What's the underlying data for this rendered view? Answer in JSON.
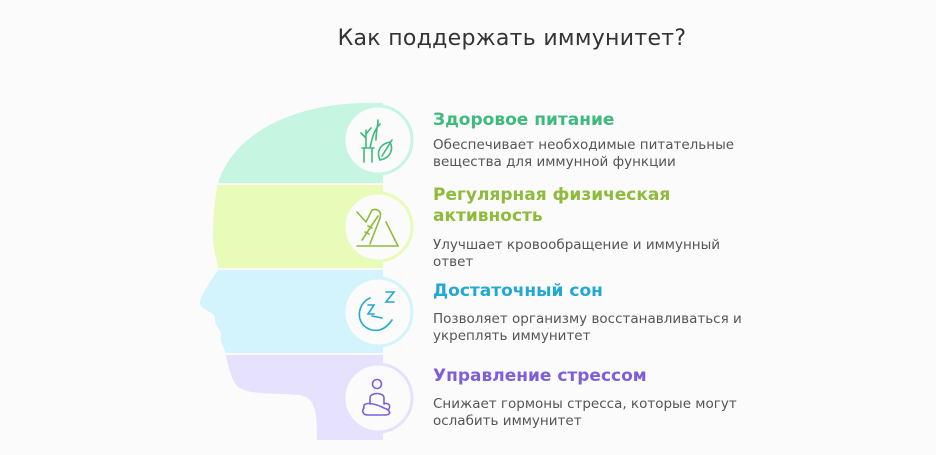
{
  "title": "Как поддержать иммунитет?",
  "items": [
    {
      "heading": "Здоровое питание",
      "description": "Обеспечивает необходимые питательные вещества для иммунной функции",
      "icon": "plant-leaf-icon",
      "color": "#3dbb7c",
      "band_color": "#c6f5e2"
    },
    {
      "heading": "Регулярная физическая активность",
      "description": "Улучшает кровообращение и иммунный ответ",
      "icon": "sneaker-icon",
      "color": "#8fbb3c",
      "band_color": "#e8fbb9"
    },
    {
      "heading": "Достаточный сон",
      "description": "Позволяет организму восстанавливаться и укреплять иммунитет",
      "icon": "moon-sleep-icon",
      "color": "#22a8d4",
      "band_color": "#d3f4fc"
    },
    {
      "heading": "Управление стрессом",
      "description": "Снижает гормоны стресса, которые могут ослабить иммунитет",
      "icon": "meditation-icon",
      "color": "#7d60d8",
      "band_color": "#e6e1fc"
    }
  ]
}
